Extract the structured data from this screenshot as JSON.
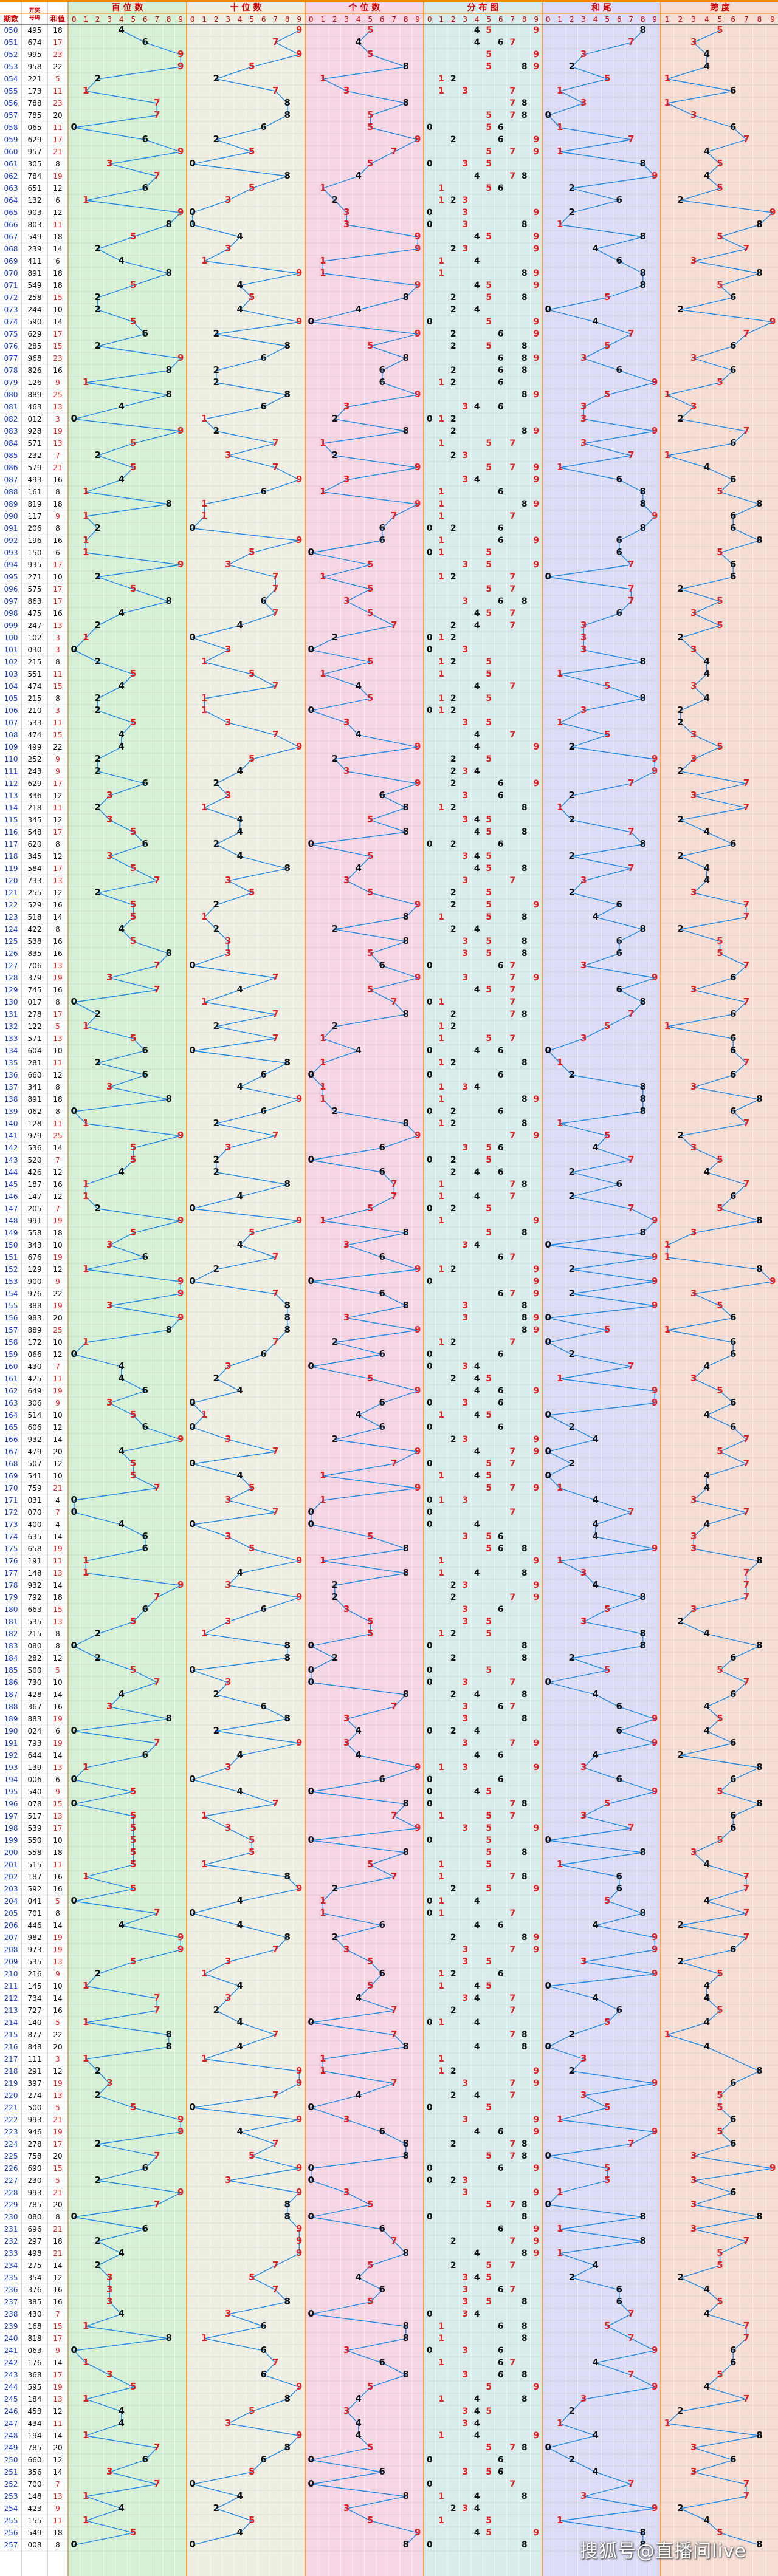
{
  "chart_data": {
    "type": "line",
    "title": "",
    "headers": {
      "period": "期数",
      "draw": "开奖号码",
      "sum": "和值"
    },
    "panels": [
      {
        "name": "百位数",
        "digits": [
          "0",
          "1",
          "2",
          "3",
          "4",
          "5",
          "6",
          "7",
          "8",
          "9"
        ]
      },
      {
        "name": "十位数",
        "digits": [
          "0",
          "1",
          "2",
          "3",
          "4",
          "5",
          "6",
          "7",
          "8",
          "9"
        ]
      },
      {
        "name": "个位数",
        "digits": [
          "0",
          "1",
          "2",
          "3",
          "4",
          "5",
          "6",
          "7",
          "8",
          "9"
        ]
      },
      {
        "name": "分布图",
        "digits": [
          "0",
          "1",
          "2",
          "3",
          "4",
          "5",
          "6",
          "7",
          "8",
          "9"
        ]
      },
      {
        "name": "和尾",
        "digits": [
          "0",
          "1",
          "2",
          "3",
          "4",
          "5",
          "6",
          "7",
          "8",
          "9"
        ]
      },
      {
        "name": "跨度",
        "digits": [
          "1",
          "2",
          "3",
          "4",
          "5",
          "6",
          "7",
          "8",
          "9"
        ]
      }
    ],
    "rows": [
      [
        "050",
        "495",
        "18"
      ],
      [
        "051",
        "674",
        "17"
      ],
      [
        "052",
        "995",
        "23"
      ],
      [
        "053",
        "958",
        "22"
      ],
      [
        "054",
        "221",
        "5"
      ],
      [
        "055",
        "173",
        "11"
      ],
      [
        "056",
        "788",
        "23"
      ],
      [
        "057",
        "785",
        "20"
      ],
      [
        "058",
        "065",
        "11"
      ],
      [
        "059",
        "629",
        "17"
      ],
      [
        "060",
        "957",
        "21"
      ],
      [
        "061",
        "305",
        "8"
      ],
      [
        "062",
        "784",
        "19"
      ],
      [
        "063",
        "651",
        "12"
      ],
      [
        "064",
        "132",
        "6"
      ],
      [
        "065",
        "903",
        "12"
      ],
      [
        "066",
        "803",
        "11"
      ],
      [
        "067",
        "549",
        "18"
      ],
      [
        "068",
        "239",
        "14"
      ],
      [
        "069",
        "411",
        "6"
      ],
      [
        "070",
        "891",
        "18"
      ],
      [
        "071",
        "549",
        "18"
      ],
      [
        "072",
        "258",
        "15"
      ],
      [
        "073",
        "244",
        "10"
      ],
      [
        "074",
        "590",
        "14"
      ],
      [
        "075",
        "629",
        "17"
      ],
      [
        "076",
        "285",
        "15"
      ],
      [
        "077",
        "968",
        "23"
      ],
      [
        "078",
        "826",
        "16"
      ],
      [
        "079",
        "126",
        "9"
      ],
      [
        "080",
        "889",
        "25"
      ],
      [
        "081",
        "463",
        "13"
      ],
      [
        "082",
        "012",
        "3"
      ],
      [
        "083",
        "928",
        "19"
      ],
      [
        "084",
        "571",
        "13"
      ],
      [
        "085",
        "232",
        "7"
      ],
      [
        "086",
        "579",
        "21"
      ],
      [
        "087",
        "493",
        "16"
      ],
      [
        "088",
        "161",
        "8"
      ],
      [
        "089",
        "819",
        "18"
      ],
      [
        "090",
        "117",
        "9"
      ],
      [
        "091",
        "206",
        "8"
      ],
      [
        "092",
        "196",
        "16"
      ],
      [
        "093",
        "150",
        "6"
      ],
      [
        "094",
        "935",
        "17"
      ],
      [
        "095",
        "271",
        "10"
      ],
      [
        "096",
        "575",
        "17"
      ],
      [
        "097",
        "863",
        "17"
      ],
      [
        "098",
        "475",
        "16"
      ],
      [
        "099",
        "247",
        "13"
      ],
      [
        "100",
        "102",
        "3"
      ],
      [
        "101",
        "030",
        "3"
      ],
      [
        "102",
        "215",
        "8"
      ],
      [
        "103",
        "551",
        "11"
      ],
      [
        "104",
        "474",
        "15"
      ],
      [
        "105",
        "215",
        "8"
      ],
      [
        "106",
        "210",
        "3"
      ],
      [
        "107",
        "533",
        "11"
      ],
      [
        "108",
        "474",
        "15"
      ],
      [
        "109",
        "499",
        "22"
      ],
      [
        "110",
        "252",
        "9"
      ],
      [
        "111",
        "243",
        "9"
      ],
      [
        "112",
        "629",
        "17"
      ],
      [
        "113",
        "336",
        "12"
      ],
      [
        "114",
        "218",
        "11"
      ],
      [
        "115",
        "345",
        "12"
      ],
      [
        "116",
        "548",
        "17"
      ],
      [
        "117",
        "620",
        "8"
      ],
      [
        "118",
        "345",
        "12"
      ],
      [
        "119",
        "584",
        "17"
      ],
      [
        "120",
        "733",
        "13"
      ],
      [
        "121",
        "255",
        "12"
      ],
      [
        "122",
        "529",
        "16"
      ],
      [
        "123",
        "518",
        "14"
      ],
      [
        "124",
        "422",
        "8"
      ],
      [
        "125",
        "538",
        "16"
      ],
      [
        "126",
        "835",
        "16"
      ],
      [
        "127",
        "706",
        "13"
      ],
      [
        "128",
        "379",
        "19"
      ],
      [
        "129",
        "745",
        "16"
      ],
      [
        "130",
        "017",
        "8"
      ],
      [
        "131",
        "278",
        "17"
      ],
      [
        "132",
        "122",
        "5"
      ],
      [
        "133",
        "571",
        "13"
      ],
      [
        "134",
        "604",
        "10"
      ],
      [
        "135",
        "281",
        "11"
      ],
      [
        "136",
        "660",
        "12"
      ],
      [
        "137",
        "341",
        "8"
      ],
      [
        "138",
        "891",
        "18"
      ],
      [
        "139",
        "062",
        "8"
      ],
      [
        "140",
        "128",
        "11"
      ],
      [
        "141",
        "979",
        "25"
      ],
      [
        "142",
        "536",
        "14"
      ],
      [
        "143",
        "520",
        "7"
      ],
      [
        "144",
        "426",
        "12"
      ],
      [
        "145",
        "187",
        "16"
      ],
      [
        "146",
        "147",
        "12"
      ],
      [
        "147",
        "205",
        "7"
      ],
      [
        "148",
        "991",
        "19"
      ],
      [
        "149",
        "558",
        "18"
      ],
      [
        "150",
        "343",
        "10"
      ],
      [
        "151",
        "676",
        "19"
      ],
      [
        "152",
        "129",
        "12"
      ],
      [
        "153",
        "900",
        "9"
      ],
      [
        "154",
        "976",
        "22"
      ],
      [
        "155",
        "388",
        "19"
      ],
      [
        "156",
        "983",
        "20"
      ],
      [
        "157",
        "889",
        "25"
      ],
      [
        "158",
        "172",
        "10"
      ],
      [
        "159",
        "066",
        "12"
      ],
      [
        "160",
        "430",
        "7"
      ],
      [
        "161",
        "425",
        "11"
      ],
      [
        "162",
        "649",
        "19"
      ],
      [
        "163",
        "306",
        "9"
      ],
      [
        "164",
        "514",
        "10"
      ],
      [
        "165",
        "606",
        "12"
      ],
      [
        "166",
        "932",
        "14"
      ],
      [
        "167",
        "479",
        "20"
      ],
      [
        "168",
        "507",
        "12"
      ],
      [
        "169",
        "541",
        "10"
      ],
      [
        "170",
        "759",
        "21"
      ],
      [
        "171",
        "031",
        "4"
      ],
      [
        "172",
        "070",
        "7"
      ],
      [
        "173",
        "400",
        "4"
      ],
      [
        "174",
        "635",
        "14"
      ],
      [
        "175",
        "658",
        "19"
      ],
      [
        "176",
        "191",
        "11"
      ],
      [
        "177",
        "148",
        "13"
      ],
      [
        "178",
        "932",
        "14"
      ],
      [
        "179",
        "792",
        "18"
      ],
      [
        "180",
        "663",
        "15"
      ],
      [
        "181",
        "535",
        "13"
      ],
      [
        "182",
        "215",
        "8"
      ],
      [
        "183",
        "080",
        "8"
      ],
      [
        "184",
        "282",
        "12"
      ],
      [
        "185",
        "500",
        "5"
      ],
      [
        "186",
        "730",
        "10"
      ],
      [
        "187",
        "428",
        "14"
      ],
      [
        "188",
        "367",
        "16"
      ],
      [
        "189",
        "883",
        "19"
      ],
      [
        "190",
        "024",
        "6"
      ],
      [
        "191",
        "793",
        "19"
      ],
      [
        "192",
        "644",
        "14"
      ],
      [
        "193",
        "139",
        "13"
      ],
      [
        "194",
        "006",
        "6"
      ],
      [
        "195",
        "540",
        "9"
      ],
      [
        "196",
        "078",
        "15"
      ],
      [
        "197",
        "517",
        "13"
      ],
      [
        "198",
        "539",
        "17"
      ],
      [
        "199",
        "550",
        "10"
      ],
      [
        "200",
        "558",
        "18"
      ],
      [
        "201",
        "515",
        "11"
      ],
      [
        "202",
        "187",
        "16"
      ],
      [
        "203",
        "592",
        "16"
      ],
      [
        "204",
        "041",
        "5"
      ],
      [
        "205",
        "701",
        "8"
      ],
      [
        "206",
        "446",
        "14"
      ],
      [
        "207",
        "982",
        "19"
      ],
      [
        "208",
        "973",
        "19"
      ],
      [
        "209",
        "535",
        "13"
      ],
      [
        "210",
        "216",
        "9"
      ],
      [
        "211",
        "145",
        "10"
      ],
      [
        "212",
        "734",
        "14"
      ],
      [
        "213",
        "727",
        "16"
      ],
      [
        "214",
        "140",
        "5"
      ],
      [
        "215",
        "877",
        "22"
      ],
      [
        "216",
        "848",
        "20"
      ],
      [
        "217",
        "111",
        "3"
      ],
      [
        "218",
        "291",
        "12"
      ],
      [
        "219",
        "397",
        "19"
      ],
      [
        "220",
        "274",
        "13"
      ],
      [
        "221",
        "500",
        "5"
      ],
      [
        "222",
        "993",
        "21"
      ],
      [
        "223",
        "946",
        "19"
      ],
      [
        "224",
        "278",
        "17"
      ],
      [
        "225",
        "758",
        "20"
      ],
      [
        "226",
        "690",
        "15"
      ],
      [
        "227",
        "230",
        "5"
      ],
      [
        "228",
        "993",
        "21"
      ],
      [
        "229",
        "785",
        "20"
      ],
      [
        "230",
        "080",
        "8"
      ],
      [
        "231",
        "696",
        "21"
      ],
      [
        "232",
        "297",
        "18"
      ],
      [
        "233",
        "498",
        "21"
      ],
      [
        "234",
        "275",
        "14"
      ],
      [
        "235",
        "354",
        "12"
      ],
      [
        "236",
        "376",
        "16"
      ],
      [
        "237",
        "385",
        "16"
      ],
      [
        "238",
        "430",
        "7"
      ],
      [
        "239",
        "168",
        "15"
      ],
      [
        "240",
        "818",
        "17"
      ],
      [
        "241",
        "063",
        "9"
      ],
      [
        "242",
        "176",
        "14"
      ],
      [
        "243",
        "368",
        "17"
      ],
      [
        "244",
        "595",
        "19"
      ],
      [
        "245",
        "184",
        "13"
      ],
      [
        "246",
        "453",
        "12"
      ],
      [
        "247",
        "434",
        "11"
      ],
      [
        "248",
        "194",
        "14"
      ],
      [
        "249",
        "785",
        "20"
      ],
      [
        "250",
        "660",
        "12"
      ],
      [
        "251",
        "356",
        "14"
      ],
      [
        "252",
        "700",
        "7"
      ],
      [
        "253",
        "148",
        "13"
      ],
      [
        "254",
        "423",
        "9"
      ],
      [
        "255",
        "155",
        "11"
      ],
      [
        "256",
        "549",
        "18"
      ],
      [
        "257",
        "008",
        "8"
      ]
    ]
  },
  "watermark": "搜狐号@直播间live",
  "colors": {
    "hundreds_bg": "#d6f0d6",
    "tens_bg": "#eeeee2",
    "units_bg": "#f6d6e4",
    "distribution_bg": "#d8ecec",
    "sum_tail_bg": "#dcdcf6",
    "span_bg": "#f6ddd4",
    "line": "#1e88e5",
    "odd_digit": "#e02020",
    "even_digit": "#111111",
    "period_text": "#1a3dcc",
    "header_text": "#d40000",
    "separator": "#ff8800"
  }
}
